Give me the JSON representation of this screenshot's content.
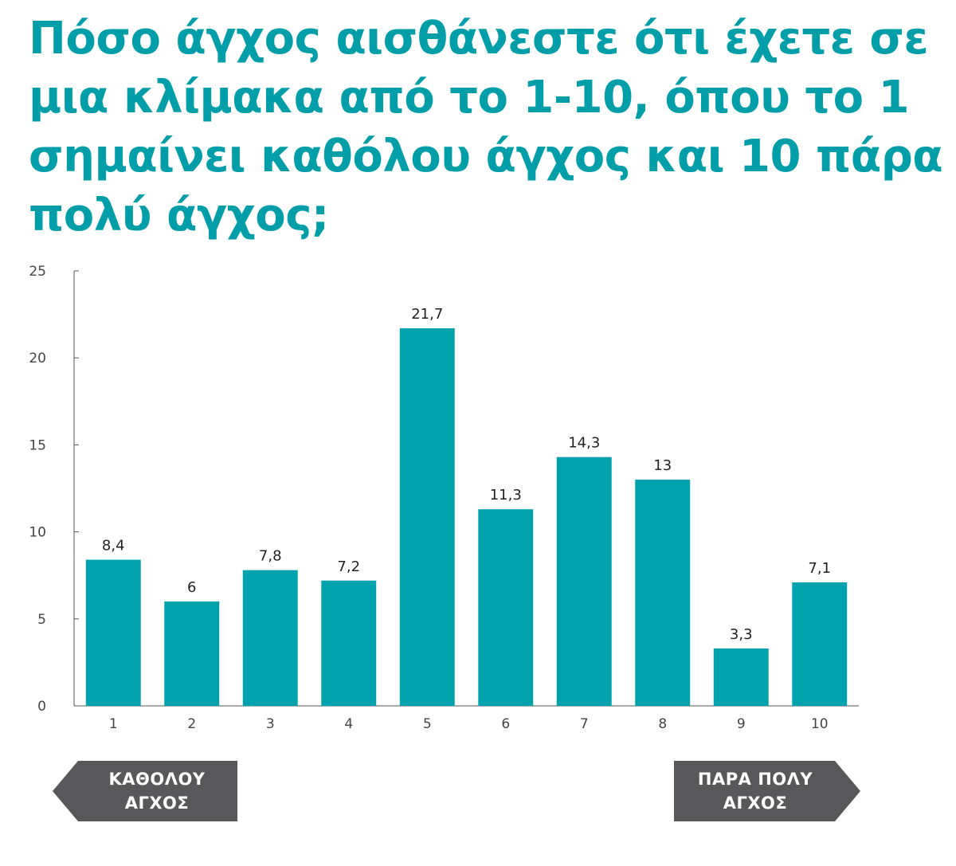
{
  "title": "Πόσο άγχος αισθάνεστε ότι έχετε σε μια κλίμακα από το 1-10, όπου το 1 σημαίνει καθόλου άγχος και 10 πάρα πολύ άγχος;",
  "colors": {
    "accent": "#009ea9",
    "bar": "#00a2ad",
    "callout": "#58585a",
    "axis": "#555555",
    "tick_text": "#444444",
    "label_text": "#222222"
  },
  "chart_data": {
    "type": "bar",
    "title": "Πόσο άγχος αισθάνεστε ότι έχετε σε μια κλίμακα από το 1-10, όπου το 1 σημαίνει καθόλου άγχος και 10 πάρα πολύ άγχος;",
    "categories": [
      "1",
      "2",
      "3",
      "4",
      "5",
      "6",
      "7",
      "8",
      "9",
      "10"
    ],
    "values": [
      8.4,
      6,
      7.8,
      7.2,
      21.7,
      11.3,
      14.3,
      13,
      3.3,
      7.1
    ],
    "value_labels": [
      "8,4",
      "6",
      "7,8",
      "7,2",
      "21,7",
      "11,3",
      "14,3",
      "13",
      "3,3",
      "7,1"
    ],
    "yticks": [
      "0",
      "5",
      "10",
      "15",
      "20",
      "25"
    ],
    "ylim": [
      0,
      25
    ],
    "xlabel": "",
    "ylabel": "",
    "grid": false,
    "legend": "none"
  },
  "callouts": {
    "left": {
      "line1": "ΚΑΘΟΛΟΥ",
      "line2": "ΑΓΧΟΣ",
      "direction": "left"
    },
    "right": {
      "line1": "ΠΑΡΑ ΠΟΛΥ",
      "line2": "ΑΓΧΟΣ",
      "direction": "right"
    }
  }
}
